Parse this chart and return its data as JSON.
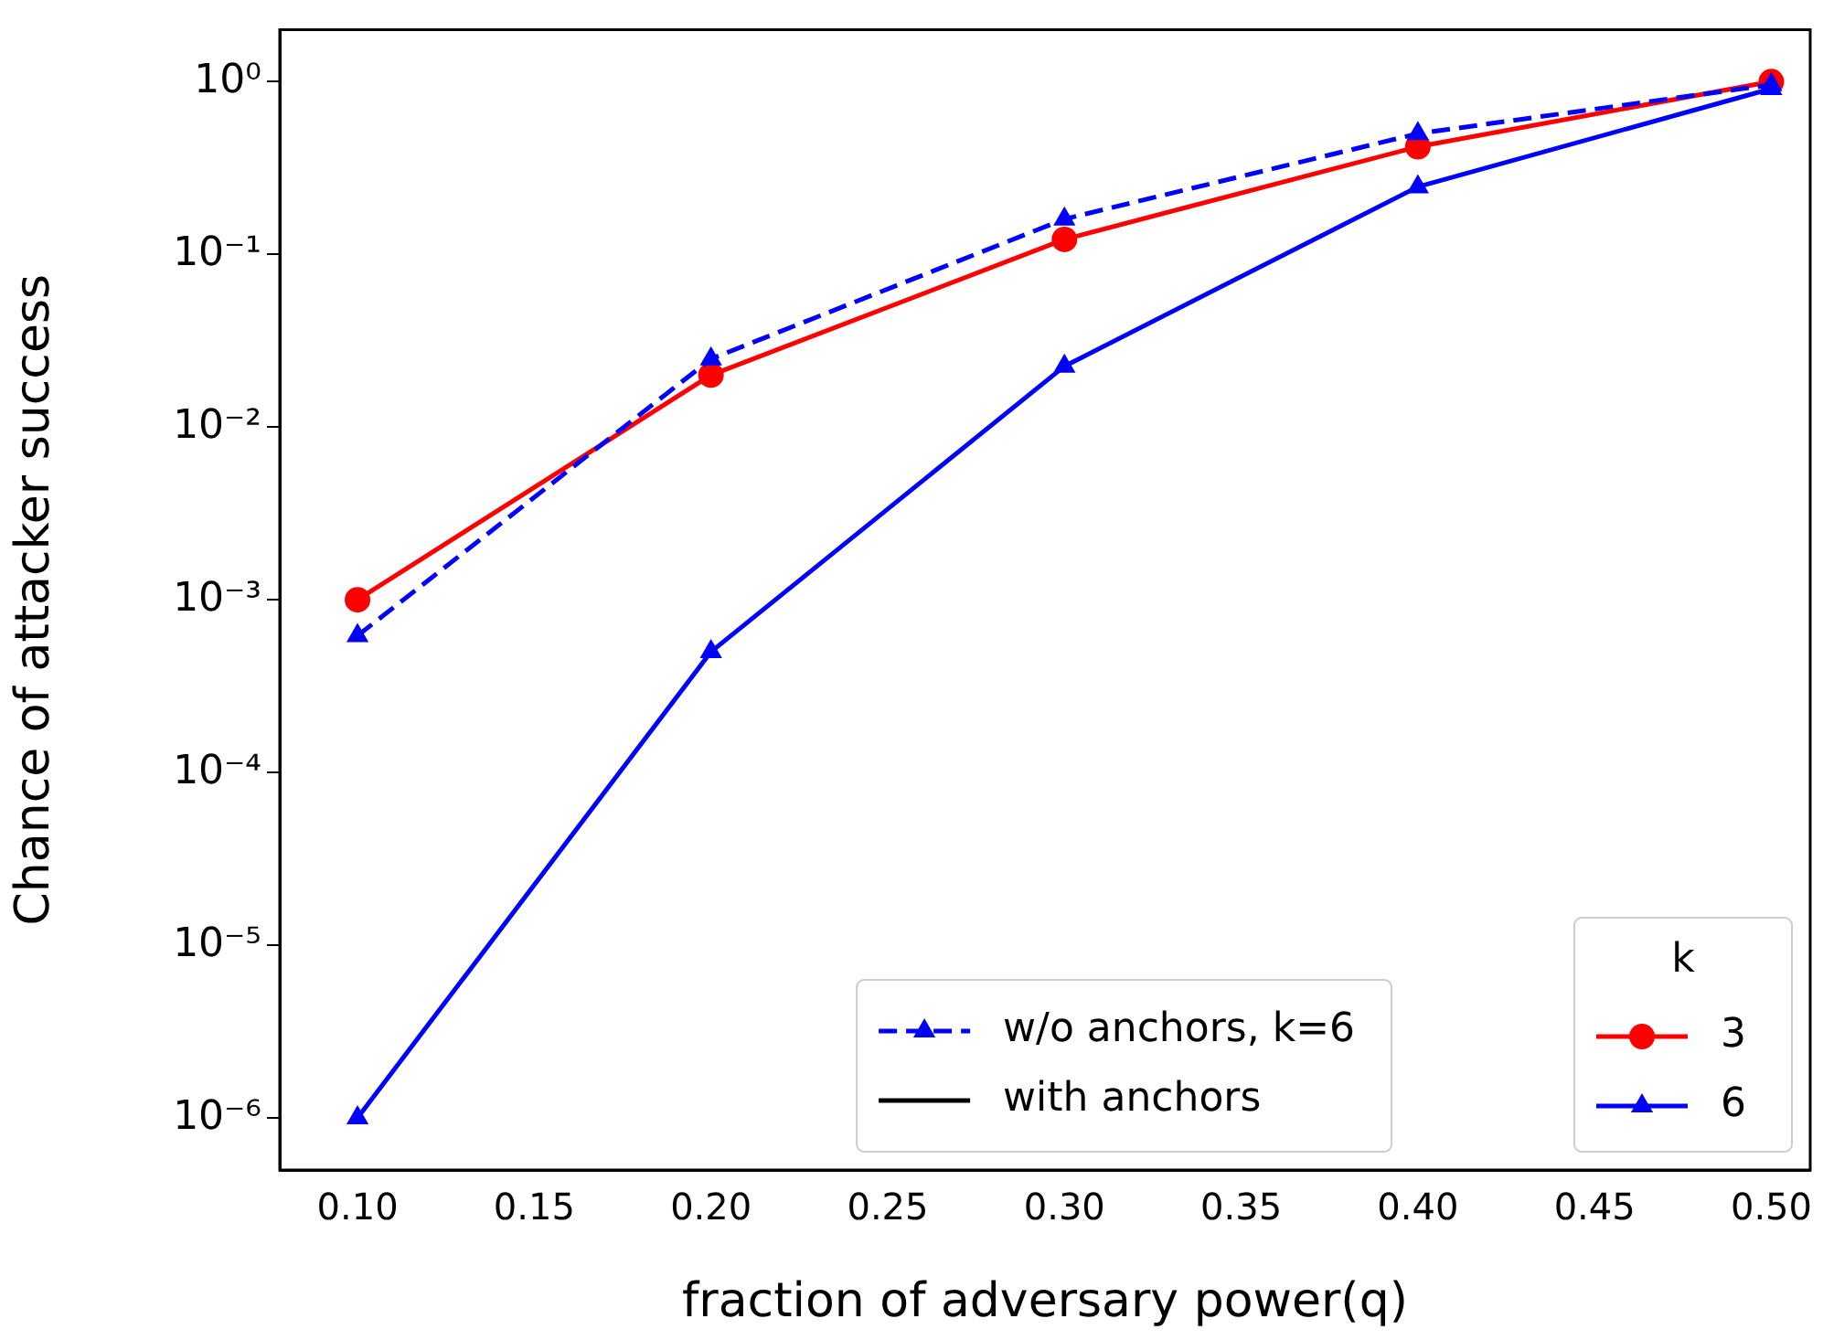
{
  "chart_data": {
    "type": "line",
    "xlabel": "fraction of adversary power(q)",
    "ylabel": "Chance of attacker success",
    "log": "y",
    "legend": "bottom right",
    "legend_title": "k",
    "grid": false,
    "x": [
      0.1,
      0.2,
      0.3,
      0.4,
      0.5
    ],
    "xlim": [
      0.078,
      0.511
    ],
    "xticks": [
      {
        "value": 0.1,
        "label": "0.10"
      },
      {
        "value": 0.15,
        "label": "0.15"
      },
      {
        "value": 0.2,
        "label": "0.20"
      },
      {
        "value": 0.25,
        "label": "0.25"
      },
      {
        "value": 0.3,
        "label": "0.30"
      },
      {
        "value": 0.35,
        "label": "0.35"
      },
      {
        "value": 0.4,
        "label": "0.40"
      },
      {
        "value": 0.45,
        "label": "0.45"
      },
      {
        "value": 0.5,
        "label": "0.50"
      }
    ],
    "ylim": [
      5e-07,
      2
    ],
    "yticks": [
      {
        "value": 1e-06,
        "label": "10⁻⁶"
      },
      {
        "value": 1e-05,
        "label": "10⁻⁵"
      },
      {
        "value": 0.0001,
        "label": "10⁻⁴"
      },
      {
        "value": 0.001,
        "label": "10⁻³"
      },
      {
        "value": 0.01,
        "label": "10⁻²"
      },
      {
        "value": 0.1,
        "label": "10⁻¹"
      },
      {
        "value": 1,
        "label": "10⁰"
      }
    ],
    "series": [
      {
        "name": "3",
        "color": "#ff0000",
        "marker": "circle",
        "line_style": "solid",
        "values": [
          0.001,
          0.02,
          0.122,
          0.42,
          1
        ]
      },
      {
        "name": "6",
        "color": "#0000ff",
        "marker": "triangle",
        "line_style": "solid",
        "values": [
          1e-06,
          0.0005,
          0.0225,
          0.246,
          0.91
        ]
      },
      {
        "name": "w/o anchors, k=6",
        "color": "#0000ff",
        "marker": "triangle",
        "line_style": "dashed",
        "values": [
          0.00062,
          0.0248,
          0.16,
          0.5,
          0.96
        ]
      }
    ],
    "annotations": [
      "with anchors"
    ]
  }
}
